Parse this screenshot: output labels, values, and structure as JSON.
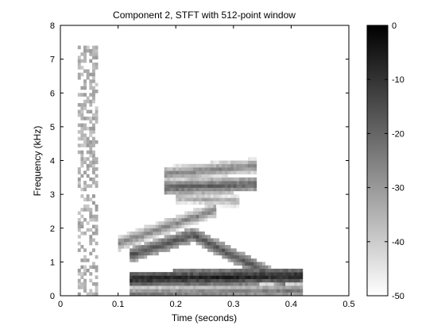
{
  "chart_data": {
    "type": "heatmap",
    "title": "Component 2, STFT with 512-point window",
    "xlabel": "Time (seconds)",
    "ylabel": "Frequency (kHz)",
    "xlim": [
      0,
      0.5
    ],
    "ylim": [
      0,
      8
    ],
    "xticks": [
      0,
      0.1,
      0.2,
      0.3,
      0.4,
      0.5
    ],
    "xtick_labels": [
      "0",
      "0.1",
      "0.2",
      "0.3",
      "0.4",
      "0.5"
    ],
    "yticks": [
      0,
      1,
      2,
      3,
      4,
      5,
      6,
      7,
      8
    ],
    "ytick_labels": [
      "0",
      "1",
      "2",
      "3",
      "4",
      "5",
      "6",
      "7",
      "8"
    ],
    "colorbar": {
      "range": [
        -50,
        0
      ],
      "ticks": [
        0,
        -10,
        -20,
        -30,
        -40,
        -50
      ],
      "tick_labels": [
        "0",
        "-10",
        "-20",
        "-30",
        "-40",
        "-50"
      ],
      "colormap": "gray (black = 0 dB, white = -50 dB)"
    },
    "grid": false,
    "features": [
      {
        "t": [
          0.03,
          0.065
        ],
        "f": [
          0.0,
          7.4
        ],
        "level": -30
      },
      {
        "t": [
          0.12,
          0.42
        ],
        "f": [
          0.5,
          0.6
        ],
        "level": -3
      },
      {
        "t": [
          0.12,
          0.42
        ],
        "f": [
          0.05,
          0.15
        ],
        "level": -20
      },
      {
        "t": [
          0.12,
          0.23,
          0.39
        ],
        "f": [
          1.2,
          1.8,
          0.4
        ],
        "level": -12
      },
      {
        "t": [
          0.1,
          0.27
        ],
        "f": [
          1.55,
          2.55
        ],
        "level": -22
      },
      {
        "t": [
          0.18,
          0.34
        ],
        "f": [
          3.2,
          3.3
        ],
        "level": -15
      },
      {
        "t": [
          0.18,
          0.34
        ],
        "f": [
          3.6,
          3.85
        ],
        "level": -22
      },
      {
        "t": [
          0.2,
          0.31
        ],
        "f": [
          2.9,
          2.8
        ],
        "level": -30
      }
    ]
  }
}
